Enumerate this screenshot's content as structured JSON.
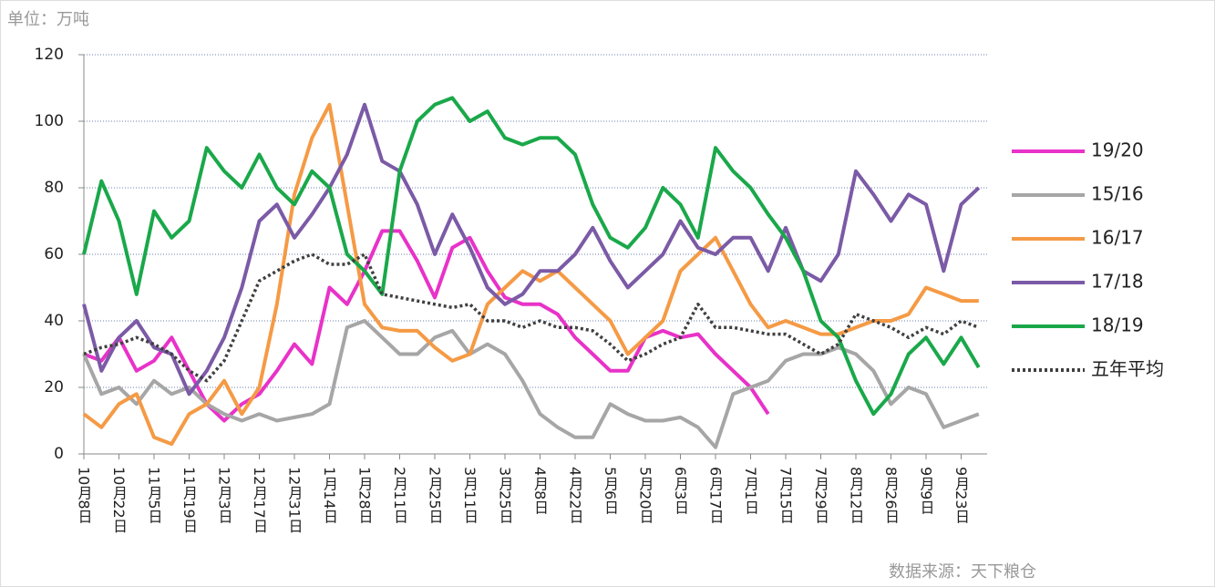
{
  "chart_data": {
    "type": "line",
    "unit_label": "单位：万吨",
    "source": "数据来源：天下粮仓",
    "categories": [
      "10月8日",
      null,
      "10月22日",
      null,
      "11月5日",
      null,
      "11月19日",
      null,
      "12月3日",
      null,
      "12月17日",
      null,
      "12月31日",
      null,
      "1月14日",
      null,
      "1月28日",
      null,
      "2月11日",
      null,
      "2月25日",
      null,
      "3月11日",
      null,
      "3月25日",
      null,
      "4月8日",
      null,
      "4月22日",
      null,
      "5月6日",
      null,
      "5月20日",
      null,
      "6月3日",
      null,
      "6月17日",
      null,
      "7月1日",
      null,
      "7月15日",
      null,
      "7月29日",
      null,
      "8月12日",
      null,
      "8月26日",
      null,
      "9月9日",
      null,
      "9月23日",
      null
    ],
    "ylim": [
      0,
      120
    ],
    "yticks": [
      0,
      20,
      40,
      60,
      80,
      100,
      120
    ],
    "grid": true,
    "series": [
      {
        "name": "19/20",
        "color": "#e832c8",
        "values": [
          30,
          28,
          35,
          25,
          28,
          35,
          25,
          15,
          10,
          15,
          18,
          25,
          33,
          27,
          50,
          45,
          55,
          67,
          67,
          58,
          47,
          62,
          65,
          55,
          47,
          45,
          45,
          42,
          35,
          30,
          25,
          25,
          35,
          37,
          35,
          36,
          30,
          25,
          20,
          12,
          null,
          null,
          null,
          null,
          null,
          null,
          null,
          null,
          null,
          null,
          null,
          null
        ]
      },
      {
        "name": "15/16",
        "color": "#a6a6a6",
        "values": [
          30,
          18,
          20,
          15,
          22,
          18,
          20,
          15,
          12,
          10,
          12,
          10,
          11,
          12,
          15,
          38,
          40,
          35,
          30,
          30,
          35,
          37,
          30,
          33,
          30,
          22,
          12,
          8,
          5,
          5,
          15,
          12,
          10,
          10,
          11,
          8,
          2,
          18,
          20,
          22,
          28,
          30,
          30,
          32,
          30,
          25,
          15,
          20,
          18,
          8,
          10,
          12
        ]
      },
      {
        "name": "16/17",
        "color": "#f59a45",
        "values": [
          12,
          8,
          15,
          18,
          5,
          3,
          12,
          15,
          22,
          12,
          20,
          45,
          78,
          95,
          105,
          75,
          45,
          38,
          37,
          37,
          32,
          28,
          30,
          45,
          50,
          55,
          52,
          55,
          50,
          45,
          40,
          30,
          35,
          40,
          55,
          60,
          65,
          55,
          45,
          38,
          40,
          38,
          36,
          36,
          38,
          40,
          40,
          42,
          50,
          48,
          46,
          46
        ]
      },
      {
        "name": "17/18",
        "color": "#7b5aa6",
        "values": [
          45,
          25,
          35,
          40,
          32,
          30,
          18,
          25,
          35,
          50,
          70,
          75,
          65,
          72,
          80,
          90,
          105,
          88,
          85,
          75,
          60,
          72,
          62,
          50,
          45,
          48,
          55,
          55,
          60,
          68,
          58,
          50,
          55,
          60,
          70,
          62,
          60,
          65,
          65,
          55,
          68,
          55,
          52,
          60,
          85,
          78,
          70,
          78,
          75,
          55,
          75,
          80
        ]
      },
      {
        "name": "18/19",
        "color": "#1aa84a",
        "values": [
          60,
          82,
          70,
          48,
          73,
          65,
          70,
          92,
          85,
          80,
          90,
          80,
          75,
          85,
          80,
          60,
          55,
          48,
          85,
          100,
          105,
          107,
          100,
          103,
          95,
          93,
          95,
          95,
          90,
          75,
          65,
          62,
          68,
          80,
          75,
          65,
          92,
          85,
          80,
          72,
          65,
          55,
          40,
          35,
          22,
          12,
          18,
          30,
          35,
          27,
          35,
          26
        ]
      },
      {
        "name": "五年平均",
        "color": "#404040",
        "dashed": true,
        "values": [
          30,
          32,
          33,
          35,
          33,
          30,
          25,
          22,
          28,
          40,
          52,
          55,
          58,
          60,
          57,
          57,
          60,
          48,
          47,
          46,
          45,
          44,
          45,
          40,
          40,
          38,
          40,
          38,
          38,
          37,
          33,
          28,
          30,
          33,
          35,
          45,
          38,
          38,
          37,
          36,
          36,
          33,
          30,
          33,
          42,
          40,
          38,
          35,
          38,
          36,
          40,
          38
        ]
      }
    ]
  }
}
